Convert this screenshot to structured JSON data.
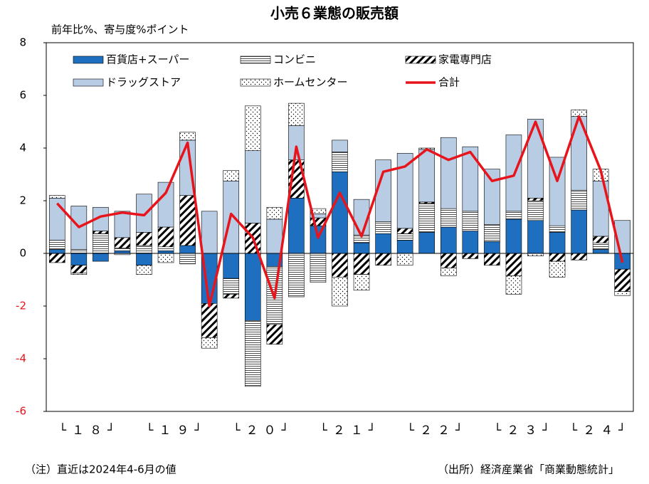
{
  "chart_data": {
    "type": "stacked_bar_line",
    "title": "小売６業態の販売額",
    "y_label": "前年比%、寄与度%ポイント",
    "note": "（注）直近は2024年4-6月の値",
    "source": "（出所）経済産業省「商業動態統計」",
    "categories": [
      null,
      null,
      null,
      null,
      null,
      null,
      null,
      null,
      null,
      null,
      null,
      null,
      null,
      null,
      null,
      null,
      null,
      null,
      null,
      null,
      null,
      null,
      null,
      null,
      null,
      null,
      null
    ],
    "x_groups": [
      {
        "label": "└１８┘",
        "span": 4
      },
      {
        "label": "└１９┘",
        "span": 4
      },
      {
        "label": "└２０┘",
        "span": 4
      },
      {
        "label": "└２１┘",
        "span": 4
      },
      {
        "label": "└２２┘",
        "span": 4
      },
      {
        "label": "└２３┘",
        "span": 4
      },
      {
        "label": "└２４┘",
        "span": 3
      }
    ],
    "series": [
      {
        "name": "百貨店+スーパー",
        "color": "#1f6fc0",
        "pattern": null,
        "values": [
          0.15,
          -0.45,
          -0.3,
          0.1,
          -0.45,
          0.1,
          0.3,
          -1.9,
          -0.95,
          -2.55,
          -0.5,
          2.1,
          1.05,
          3.1,
          0.4,
          0.75,
          0.5,
          0.8,
          1.0,
          0.85,
          0.45,
          1.3,
          1.25,
          0.8,
          1.65,
          0.15,
          -0.6
        ]
      },
      {
        "name": "コンビニ",
        "color": "#000000",
        "pattern": "hlines",
        "values": [
          0.35,
          0.15,
          0.75,
          0.1,
          0.3,
          0.15,
          -0.4,
          0,
          -0.6,
          -2.5,
          -2.2,
          -1.65,
          -1.1,
          0.75,
          0.3,
          0.45,
          0.25,
          1.1,
          0.7,
          0.75,
          0.65,
          0.3,
          0.75,
          0.25,
          0.75,
          0.25,
          0
        ]
      },
      {
        "name": "家電専門店",
        "color": "#000000",
        "pattern": "hatch",
        "values": [
          -0.35,
          -0.3,
          0.1,
          0.4,
          0.5,
          0.75,
          1.9,
          -1.3,
          -0.15,
          1.15,
          -0.75,
          1.45,
          0.3,
          -0.9,
          -0.8,
          -0.45,
          0.2,
          0.05,
          -0.55,
          -0.2,
          -0.45,
          -0.85,
          0.1,
          -0.3,
          -0.25,
          0.25,
          -0.85
        ]
      },
      {
        "name": "ドラッグストア",
        "color": "#b8cce4",
        "pattern": null,
        "values": [
          1.6,
          1.65,
          0.9,
          1.0,
          1.45,
          1.7,
          2.1,
          1.6,
          2.75,
          2.75,
          1.3,
          1.3,
          0.15,
          0.45,
          1.35,
          2.35,
          2.85,
          2.0,
          2.7,
          2.45,
          2.1,
          2.9,
          3.0,
          2.6,
          2.8,
          2.1,
          1.25
        ]
      },
      {
        "name": "ホームセンター",
        "color": "#000000",
        "pattern": "dots",
        "values": [
          0.1,
          -0.05,
          0,
          -0.05,
          -0.35,
          -0.35,
          0.3,
          -0.4,
          0.4,
          1.7,
          0.45,
          0.85,
          0.2,
          -1.1,
          -0.6,
          0,
          -0.45,
          0.05,
          -0.3,
          0,
          0,
          -0.7,
          -0.1,
          -0.6,
          0.25,
          0.45,
          -0.15
        ]
      },
      {
        "name": "合計",
        "color": "#e8141c",
        "type": "line",
        "values": [
          1.9,
          1.0,
          1.4,
          1.55,
          1.45,
          2.3,
          4.2,
          -2.0,
          1.5,
          0.6,
          -1.7,
          4.05,
          0.6,
          2.3,
          0.65,
          3.1,
          3.3,
          3.95,
          3.55,
          3.85,
          2.75,
          2.95,
          5.0,
          2.75,
          5.2,
          3.15,
          -0.35
        ]
      }
    ],
    "ylim": [
      -6,
      8
    ],
    "yticks": [
      -6,
      -4,
      -2,
      0,
      2,
      4,
      6,
      8
    ],
    "negative_tick_color": "#e8141c",
    "legend": "top"
  }
}
